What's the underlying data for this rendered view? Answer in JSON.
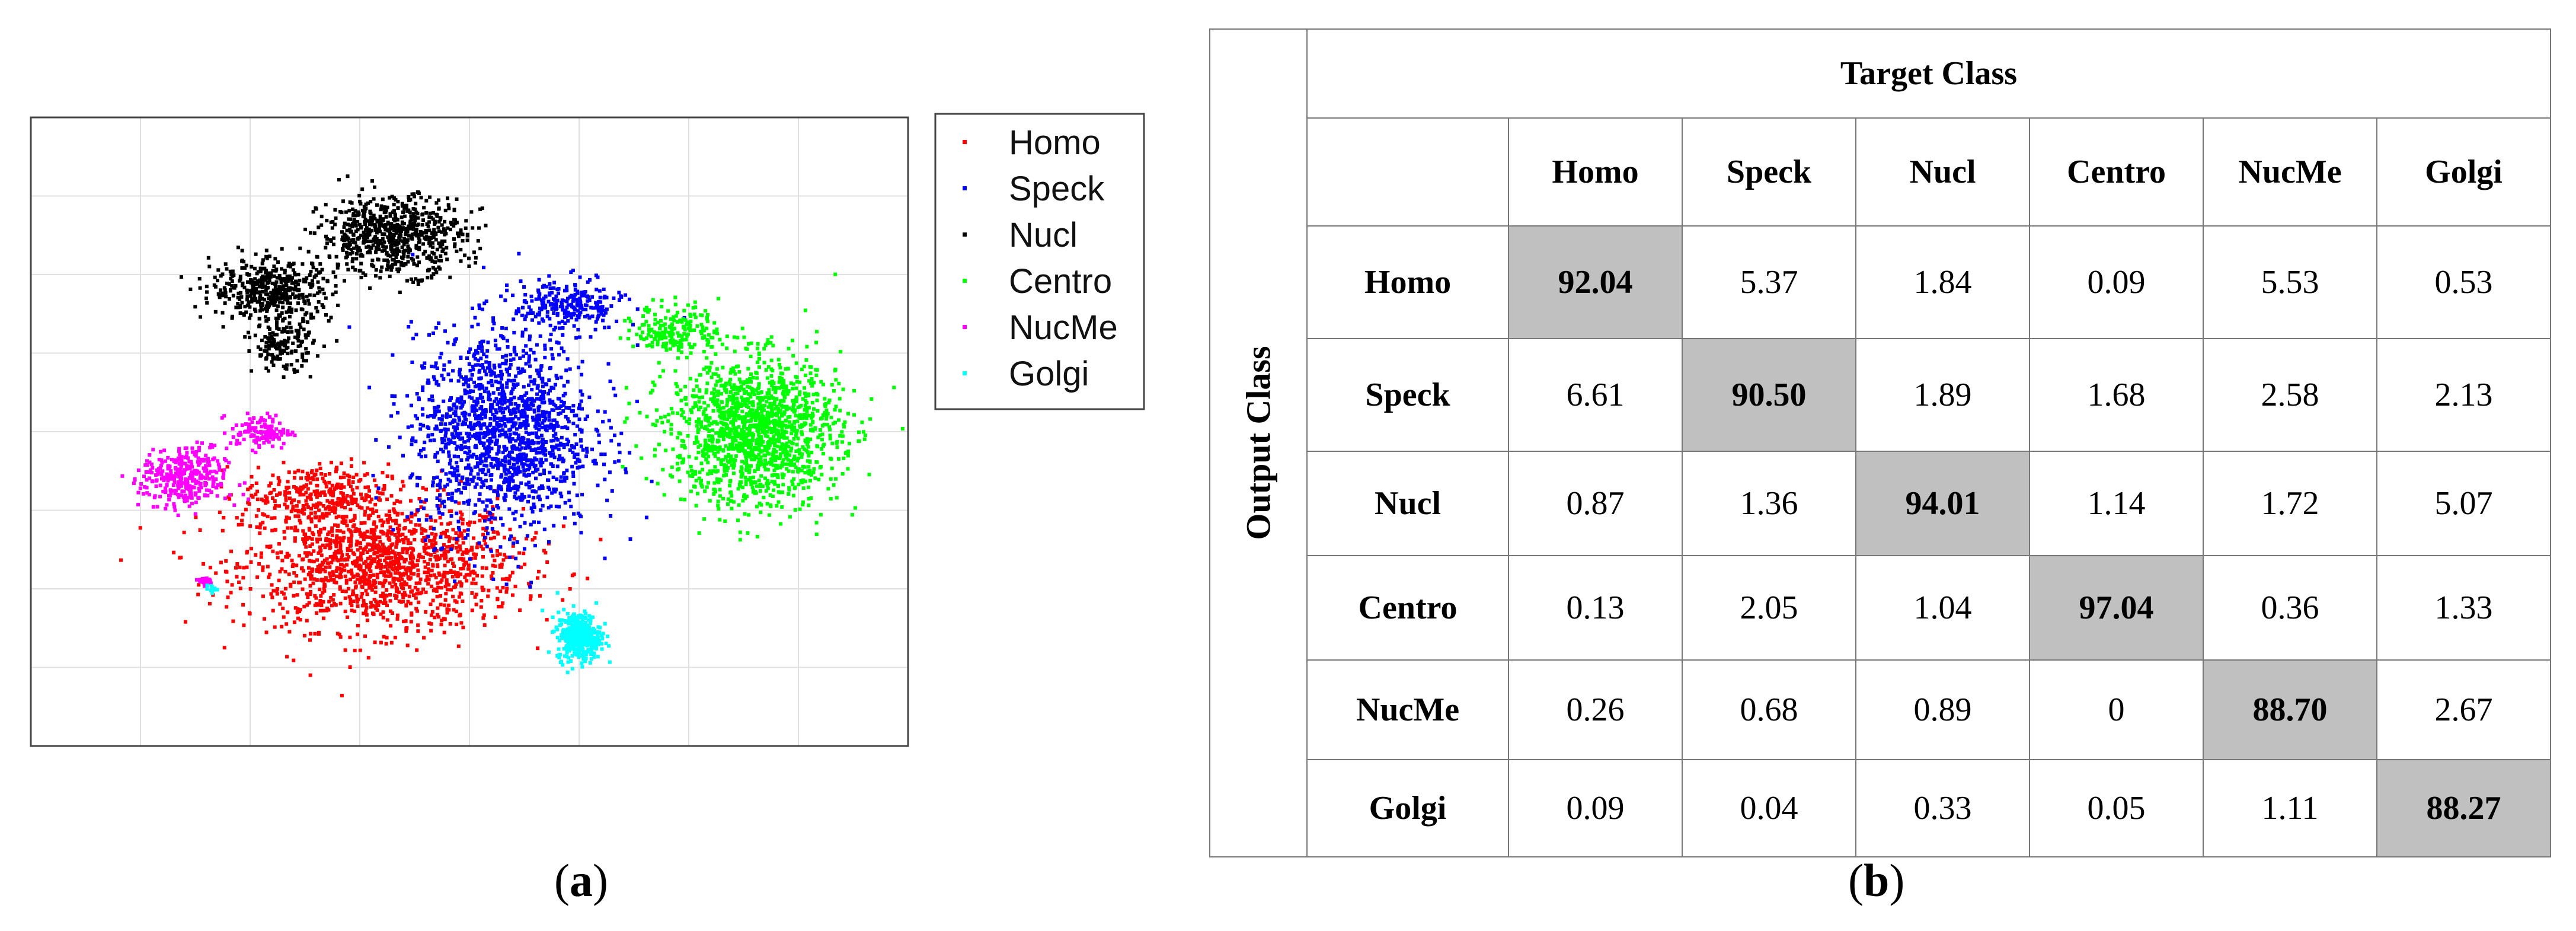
{
  "panels": {
    "a_label": "a",
    "b_label": "b"
  },
  "colors": {
    "Homo": "#ff0000",
    "Speck": "#0000ff",
    "Nucl": "#000000",
    "Centro": "#00ff00",
    "NucMe": "#ff00ff",
    "Golgi": "#00ffff",
    "diagonal_fill": "#c0c0c0"
  },
  "chart_data": [
    {
      "type": "scatter",
      "title": "",
      "xlabel": "",
      "ylabel": "",
      "grid": true,
      "legend_position": "outside-right",
      "xlim": [
        0,
        8
      ],
      "ylim": [
        0,
        8
      ],
      "series": [
        {
          "name": "Homo",
          "color": "#ff0000",
          "clusters": [
            {
              "cx": 3.2,
              "cy": 2.3,
              "sx": 1.15,
              "sy": 0.75,
              "n": 1400
            },
            {
              "cx": 2.6,
              "cy": 3.2,
              "sx": 0.6,
              "sy": 0.35,
              "n": 300
            }
          ]
        },
        {
          "name": "Speck",
          "color": "#0000ff",
          "clusters": [
            {
              "cx": 4.3,
              "cy": 4.0,
              "sx": 0.75,
              "sy": 1.15,
              "n": 1500
            },
            {
              "cx": 4.9,
              "cy": 5.6,
              "sx": 0.45,
              "sy": 0.3,
              "n": 250
            }
          ]
        },
        {
          "name": "Nucl",
          "color": "#000000",
          "clusters": [
            {
              "cx": 3.3,
              "cy": 6.5,
              "sx": 0.6,
              "sy": 0.45,
              "n": 700
            },
            {
              "cx": 2.2,
              "cy": 5.8,
              "sx": 0.5,
              "sy": 0.35,
              "n": 450
            },
            {
              "cx": 2.3,
              "cy": 5.1,
              "sx": 0.25,
              "sy": 0.3,
              "n": 150
            }
          ]
        },
        {
          "name": "Centro",
          "color": "#00ff00",
          "clusters": [
            {
              "cx": 6.6,
              "cy": 4.0,
              "sx": 0.7,
              "sy": 0.85,
              "n": 1500
            },
            {
              "cx": 5.9,
              "cy": 5.3,
              "sx": 0.35,
              "sy": 0.3,
              "n": 200
            }
          ]
        },
        {
          "name": "NucMe",
          "color": "#ff00ff",
          "clusters": [
            {
              "cx": 1.4,
              "cy": 3.4,
              "sx": 0.35,
              "sy": 0.35,
              "n": 350
            },
            {
              "cx": 2.1,
              "cy": 4.0,
              "sx": 0.25,
              "sy": 0.2,
              "n": 120
            },
            {
              "cx": 1.6,
              "cy": 2.1,
              "sx": 0.06,
              "sy": 0.05,
              "n": 25
            }
          ]
        },
        {
          "name": "Golgi",
          "color": "#00ffff",
          "clusters": [
            {
              "cx": 5.0,
              "cy": 1.4,
              "sx": 0.18,
              "sy": 0.28,
              "n": 400
            },
            {
              "cx": 1.65,
              "cy": 2.0,
              "sx": 0.05,
              "sy": 0.04,
              "n": 15
            }
          ]
        }
      ]
    },
    {
      "type": "table",
      "title": "",
      "column_title": "Target Class",
      "row_title": "Output Class",
      "columns": [
        "Homo",
        "Speck",
        "Nucl",
        "Centro",
        "NucMe",
        "Golgi"
      ],
      "rows": [
        {
          "label": "Homo",
          "values": [
            "92.04",
            "5.37",
            "1.84",
            "0.09",
            "5.53",
            "0.53"
          ]
        },
        {
          "label": "Speck",
          "values": [
            "6.61",
            "90.50",
            "1.89",
            "1.68",
            "2.58",
            "2.13"
          ]
        },
        {
          "label": "Nucl",
          "values": [
            "0.87",
            "1.36",
            "94.01",
            "1.14",
            "1.72",
            "5.07"
          ]
        },
        {
          "label": "Centro",
          "values": [
            "0.13",
            "2.05",
            "1.04",
            "97.04",
            "0.36",
            "1.33"
          ]
        },
        {
          "label": "NucMe",
          "values": [
            "0.26",
            "0.68",
            "0.89",
            "0",
            "88.70",
            "2.67"
          ]
        },
        {
          "label": "Golgi",
          "values": [
            "0.09",
            "0.04",
            "0.33",
            "0.05",
            "1.11",
            "88.27"
          ]
        }
      ],
      "highlight": "diagonal"
    }
  ]
}
